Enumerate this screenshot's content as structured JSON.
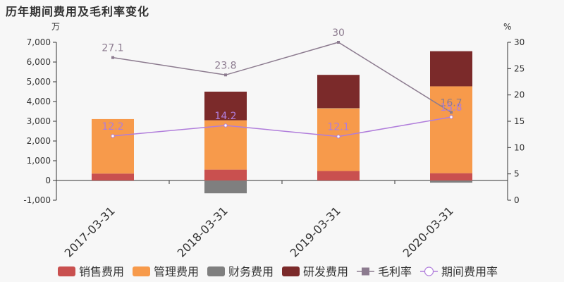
{
  "title": "历年期间费用及毛利率变化",
  "chart_data": {
    "type": "bar",
    "stacked": true,
    "categories": [
      "2017-03-31",
      "2018-03-31",
      "2019-03-31",
      "2020-03-31"
    ],
    "left_unit": "万",
    "right_unit": "%",
    "ylim_left": [
      -1000,
      7000
    ],
    "yticks_left": [
      -1000,
      0,
      1000,
      2000,
      3000,
      4000,
      5000,
      6000,
      7000
    ],
    "yticks_left_labels": [
      "-1,000",
      "0",
      "1,000",
      "2,000",
      "3,000",
      "4,000",
      "5,000",
      "6,000",
      "7,000"
    ],
    "ylim_right": [
      0,
      30
    ],
    "yticks_right": [
      0,
      5,
      10,
      15,
      20,
      25,
      30
    ],
    "yticks_right_labels": [
      "0",
      "5",
      "10",
      "15",
      "20",
      "25",
      "30"
    ],
    "bar_series": [
      {
        "name": "销售费用",
        "color": "#c9504f",
        "values": [
          350,
          550,
          480,
          370
        ]
      },
      {
        "name": "管理费用",
        "color": "#f79a4b",
        "values": [
          2760,
          2500,
          3180,
          4400
        ]
      },
      {
        "name": "财务费用",
        "color": "#7f7f7f",
        "values": [
          -30,
          -650,
          10,
          -110
        ]
      },
      {
        "name": "研发费用",
        "color": "#7b2a2a",
        "values": [
          0,
          1450,
          1680,
          1780
        ]
      }
    ],
    "line_series": [
      {
        "name": "毛利率",
        "color": "#8c7b8f",
        "marker": "square",
        "values": [
          27.1,
          23.8,
          30,
          16.7
        ],
        "labels": [
          "27.1",
          "23.8",
          "30",
          "16.7"
        ]
      },
      {
        "name": "期间费用率",
        "color": "#b07ddb",
        "marker": "circle",
        "values": [
          12.2,
          14.2,
          12.1,
          15.8
        ],
        "labels": [
          "12.2",
          "14.2",
          "12.1",
          "15.8"
        ]
      }
    ],
    "legend_position": "bottom"
  }
}
